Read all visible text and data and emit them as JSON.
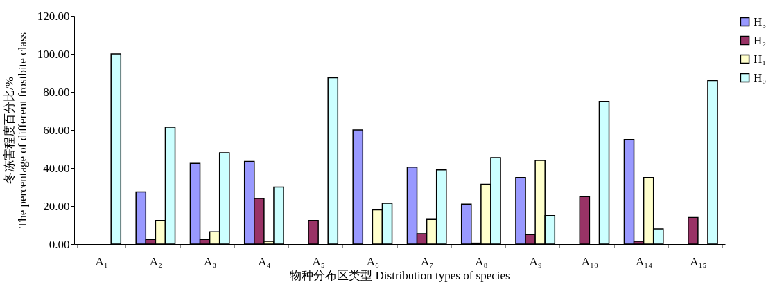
{
  "chart_data": {
    "type": "bar",
    "xlabel": "物种分布区类型  Distribution types of species",
    "ylabel": "冬冻害程度百分比/%\nThe percentage of different frostbite class",
    "categories": [
      "A₁",
      "A₂",
      "A₃",
      "A₄",
      "A₅",
      "A₆",
      "A₇",
      "A₈",
      "A₉",
      "A₁₀",
      "A₁₄",
      "A₁₅"
    ],
    "series": [
      {
        "name": "H₃",
        "color": "#9999ff",
        "values": [
          null,
          27.5,
          42.5,
          43.5,
          null,
          60,
          40.5,
          21,
          35,
          null,
          55,
          null
        ]
      },
      {
        "name": "H₂",
        "color": "#993366",
        "values": [
          null,
          2.5,
          2.5,
          24,
          12.5,
          null,
          5.5,
          0.5,
          5,
          25,
          1.5,
          14
        ]
      },
      {
        "name": "H₁",
        "color": "#ffffcc",
        "values": [
          null,
          12.5,
          6.5,
          1.5,
          null,
          18,
          13,
          31.5,
          44,
          null,
          35,
          null
        ]
      },
      {
        "name": "H₀",
        "color": "#ccffff",
        "values": [
          100,
          61.5,
          48,
          30,
          87.5,
          21.5,
          39,
          45.5,
          15,
          75,
          8,
          86
        ]
      }
    ],
    "ylim": [
      0,
      120
    ],
    "yticks": [
      {
        "value": 0,
        "label": "0.00"
      },
      {
        "value": 20,
        "label": "20.00"
      },
      {
        "value": 40,
        "label": "40.00"
      },
      {
        "value": 60,
        "label": "60.00"
      },
      {
        "value": 80,
        "label": "80.00"
      },
      {
        "value": 100,
        "label": "100.00"
      },
      {
        "value": 120,
        "label": "120.00"
      }
    ],
    "grid": false,
    "legend": "right"
  }
}
